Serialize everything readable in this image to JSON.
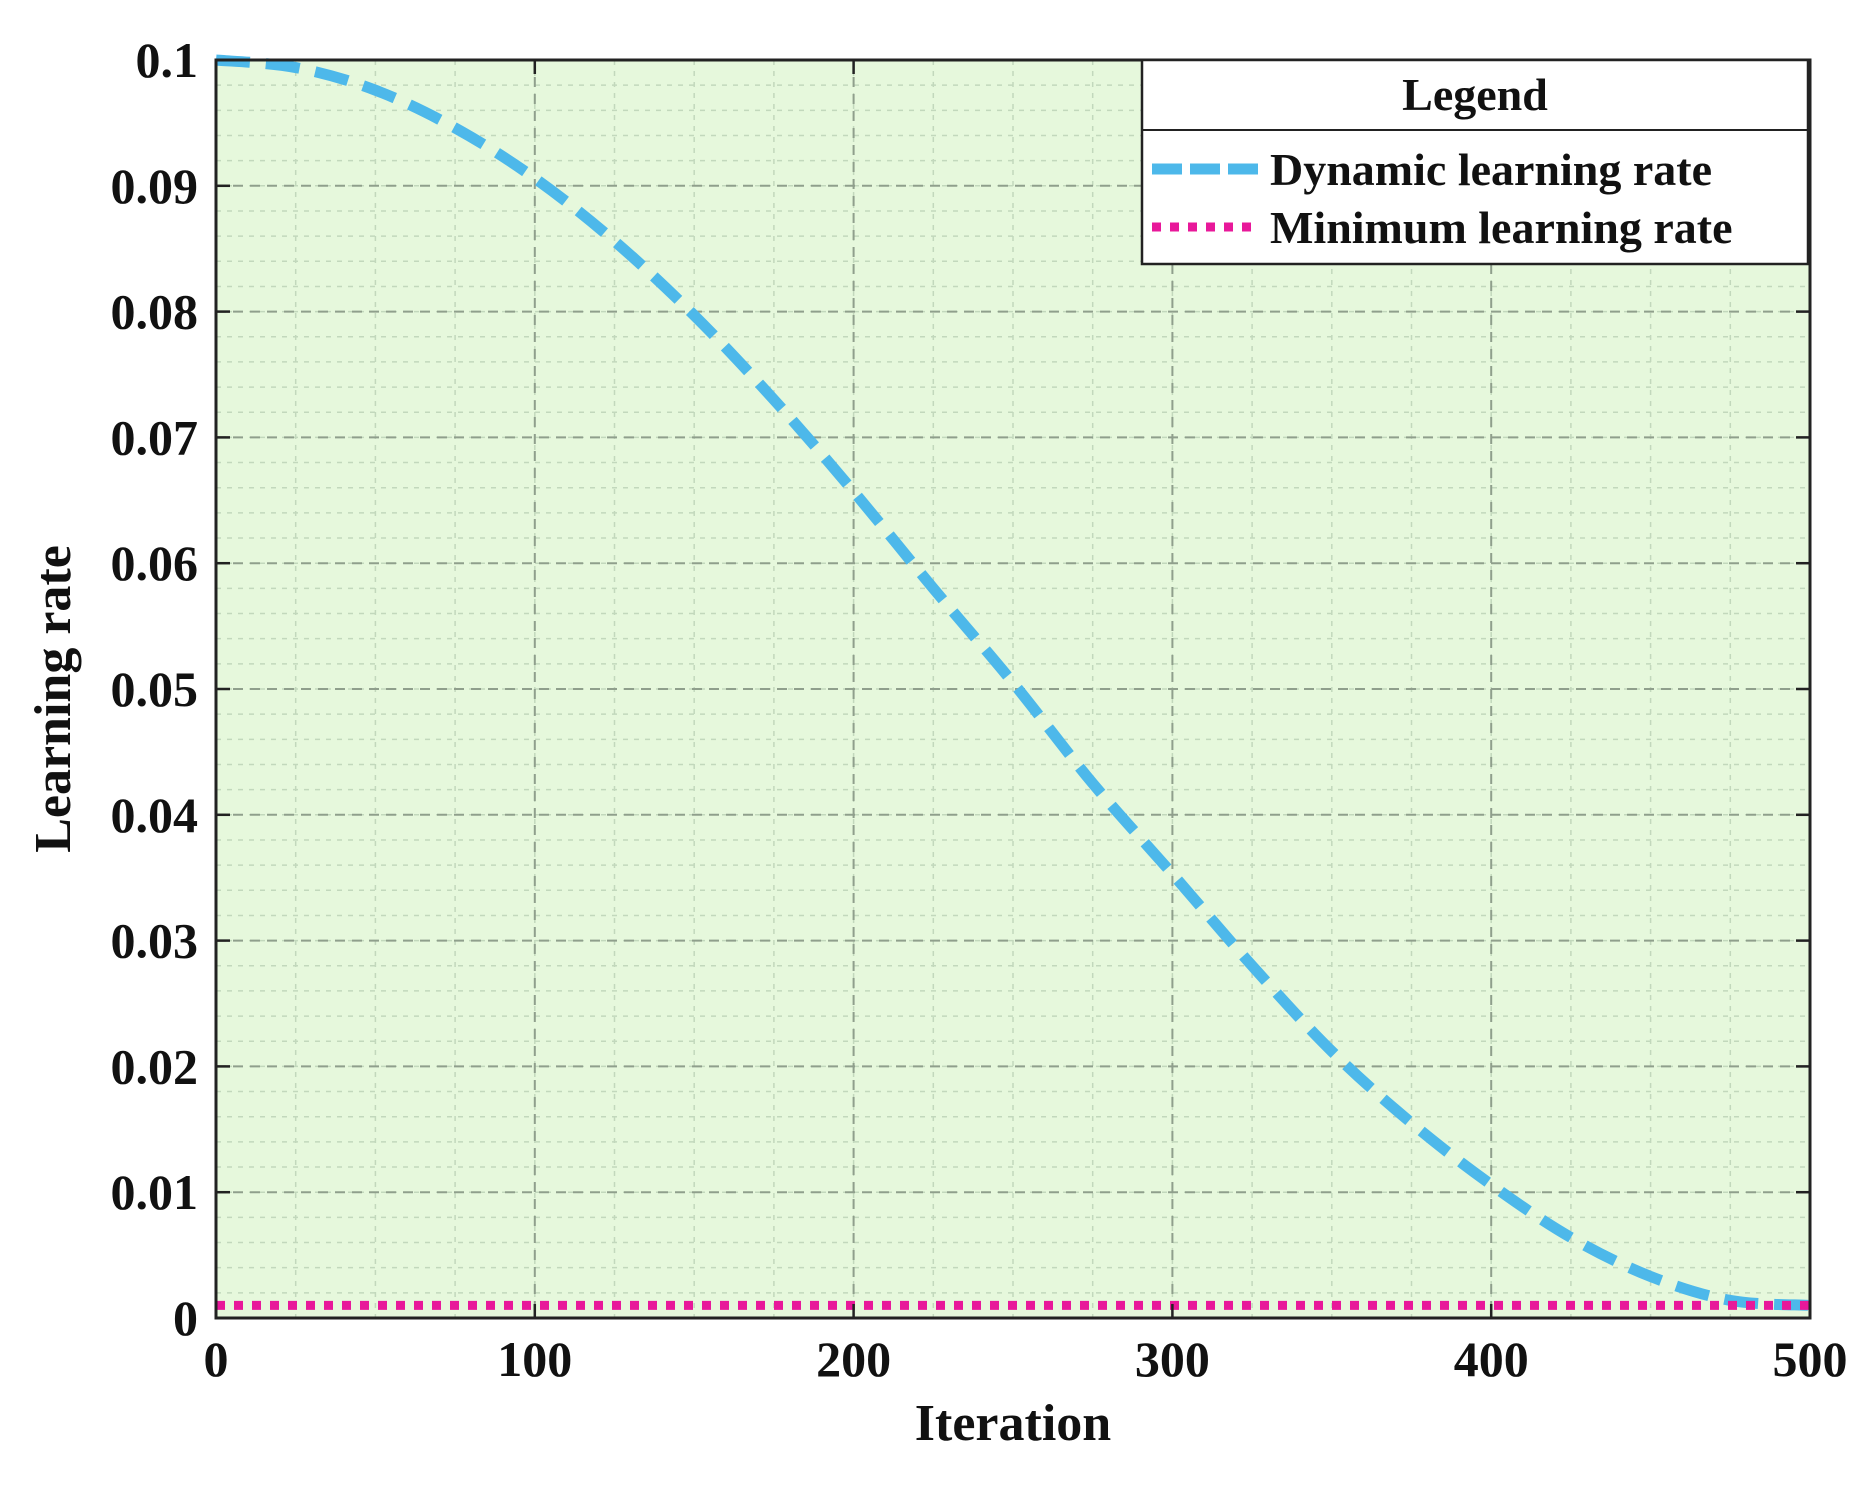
{
  "chart_data": {
    "type": "line",
    "xlabel": "Iteration",
    "ylabel": "Learning rate",
    "xlim": [
      0,
      500
    ],
    "ylim": [
      0,
      0.1
    ],
    "x_ticks": [
      0,
      100,
      200,
      300,
      400,
      500
    ],
    "x_tick_labels": [
      "0",
      "100",
      "200",
      "300",
      "400",
      "500"
    ],
    "y_ticks": [
      0,
      0.01,
      0.02,
      0.03,
      0.04,
      0.05,
      0.06,
      0.07,
      0.08,
      0.09,
      0.1
    ],
    "y_tick_labels": [
      "0",
      "0.01",
      "0.02",
      "0.03",
      "0.04",
      "0.05",
      "0.06",
      "0.07",
      "0.08",
      "0.09",
      "0.1"
    ],
    "grid": true,
    "minor_grid": true,
    "background_color": "#e6f8dc",
    "legend": {
      "title": "Legend",
      "placement": "top-right"
    },
    "series": [
      {
        "name": "Dynamic learning rate",
        "color": "#4db8ea",
        "line_style": "dashed",
        "x": [
          0,
          25,
          50,
          75,
          100,
          125,
          150,
          175,
          200,
          225,
          250,
          275,
          300,
          325,
          350,
          375,
          400,
          425,
          450,
          475,
          500
        ],
        "y": [
          0.1,
          0.0994,
          0.0976,
          0.0946,
          0.0906,
          0.0856,
          0.0797,
          0.073,
          0.0657,
          0.058,
          0.0505,
          0.0425,
          0.0353,
          0.028,
          0.0212,
          0.0155,
          0.0106,
          0.0064,
          0.0033,
          0.0014,
          0.001
        ]
      },
      {
        "name": "Minimum learning rate",
        "color": "#e8189a",
        "line_style": "dotted",
        "x": [
          0,
          500
        ],
        "y": [
          0.001,
          0.001
        ]
      }
    ]
  }
}
